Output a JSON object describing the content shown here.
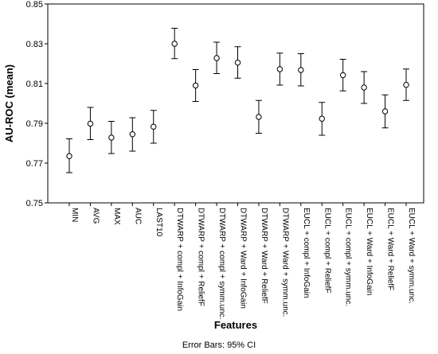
{
  "chart_data": {
    "type": "errorbar",
    "title": "",
    "xlabel": "Features",
    "ylabel": "AU-ROC (mean)",
    "ylim": [
      0.75,
      0.85
    ],
    "yticks": [
      "0.75",
      "0.77",
      "0.79",
      "0.81",
      "0.83",
      "0.85"
    ],
    "grid": false,
    "categories": [
      "MIN",
      "AVG",
      "MAX",
      "AUC",
      "LAST10",
      "DTWARP + compl + InfoGain",
      "DTWARP + compl + ReliefF",
      "DTWARP + compl + symm.unc.",
      "DTWARP + Ward + InfoGain",
      "DTWARP + Ward + ReliefF",
      "DTWARP + Ward + symm.unc.",
      "EUCL + compl + InfoGain",
      "EUCL + compl + ReliefF",
      "EUCL + compl + symm.unc.",
      "EUCL + Ward + InfoGain",
      "EUCL + Ward + ReliefF",
      "EUCL + Ward + symm.unc."
    ],
    "mean": [
      0.7735,
      0.7898,
      0.7828,
      0.7845,
      0.7883,
      0.83,
      0.809,
      0.8228,
      0.8205,
      0.7932,
      0.8172,
      0.8168,
      0.7923,
      0.8142,
      0.808,
      0.796,
      0.8093
    ],
    "lower": [
      0.7652,
      0.7818,
      0.7748,
      0.776,
      0.78,
      0.8225,
      0.801,
      0.815,
      0.8127,
      0.785,
      0.8092,
      0.8088,
      0.784,
      0.8063,
      0.8,
      0.7877,
      0.8015
    ],
    "upper": [
      0.7822,
      0.798,
      0.791,
      0.7928,
      0.7965,
      0.8378,
      0.817,
      0.8308,
      0.8285,
      0.8015,
      0.8253,
      0.825,
      0.8005,
      0.8222,
      0.816,
      0.8043,
      0.8173
    ]
  },
  "footnote": "Error Bars: 95% CI"
}
